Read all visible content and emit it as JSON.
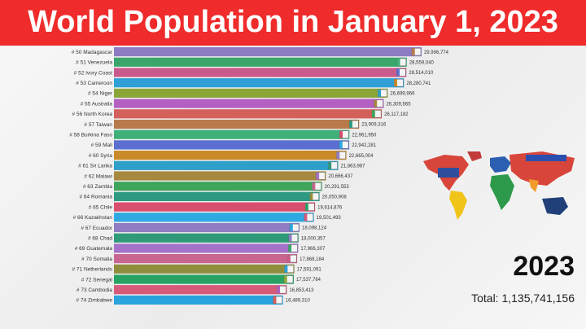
{
  "title": "World Population in January 1, 2023",
  "year": "2023",
  "total_label": "Total:",
  "total_value": "1,135,741,156",
  "chart_data": {
    "type": "bar",
    "orientation": "horizontal",
    "title": "World Population in January 1, 2023",
    "categories": [
      "# 50 Madagascar",
      "# 51 Venezuela",
      "# 52 Ivory Coast",
      "# 53 Cameroon",
      "# 54 Niger",
      "# 55 Australia",
      "# 56 North Korea",
      "# 57 Taiwan",
      "# 58 Burkina Faso",
      "# 59 Mali",
      "# 60 Syria",
      "# 61 Sri Lanka",
      "# 62 Malawi",
      "# 63 Zambia",
      "# 64 Romania",
      "# 65 Chile",
      "# 66 Kazakhstan",
      "# 67 Ecuador",
      "# 68 Chad",
      "# 69 Guatemala",
      "# 70 Somalia",
      "# 71 Netherlands",
      "# 72 Senegal",
      "# 73 Cambodia",
      "# 74 Zimbabwe"
    ],
    "values": [
      29996774,
      28559040,
      28514010,
      28280741,
      26699966,
      26309565,
      26117182,
      23909316,
      22961950,
      22942281,
      22665004,
      21863987,
      20666437,
      20291553,
      20050908,
      19614876,
      19501493,
      18098124,
      18000357,
      17966307,
      17868184,
      17591091,
      17537764,
      16853413,
      16489310
    ],
    "value_labels": [
      "29,996,774",
      "28,559,040",
      "28,514,010",
      "28,280,741",
      "26,699,966",
      "26,309,565",
      "26,117,182",
      "23,909,316",
      "22,961,950",
      "22,942,281",
      "22,665,004",
      "21,863,987",
      "20,666,437",
      "20,291,553",
      "20,050,908",
      "19,614,876",
      "19,501,493",
      "18,098,124",
      "18,000,357",
      "17,966,307",
      "17,868,184",
      "17,591,091",
      "17,537,764",
      "16,853,413",
      "16,489,310"
    ],
    "colors": [
      "#8e7cc3",
      "#3aa66b",
      "#c95a8b",
      "#2f9fd6",
      "#8aa638",
      "#b45fc2",
      "#d4605c",
      "#b87a4a",
      "#3fb07a",
      "#5a6fcf",
      "#c98a2a",
      "#2e9fc9",
      "#a7883f",
      "#3fa55a",
      "#2f9a82",
      "#d84e6e",
      "#2ea9e1",
      "#8f7cc2",
      "#2f9a7a",
      "#a572c9",
      "#c86591",
      "#8f8e3c",
      "#27a262",
      "#d65a7a",
      "#2aa3dc"
    ],
    "xlim": [
      0,
      30000000
    ],
    "grid": false,
    "legend": "none"
  }
}
